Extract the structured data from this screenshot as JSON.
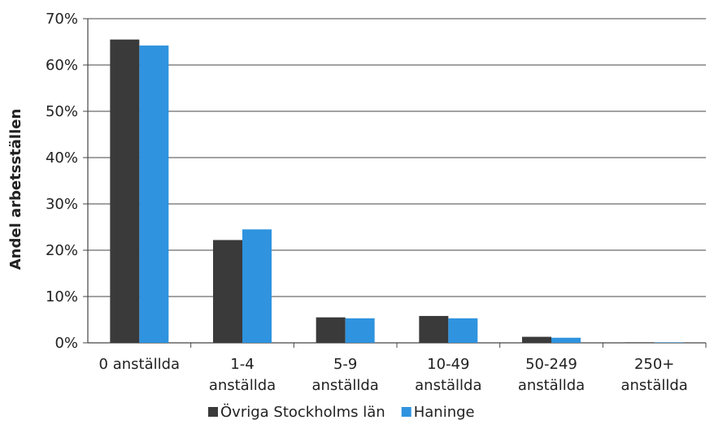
{
  "chart_data": {
    "type": "bar",
    "ylabel": "Andel arbetsställen",
    "xlabel": "",
    "ylim": [
      0,
      70
    ],
    "yticks": [
      "0%",
      "10%",
      "20%",
      "30%",
      "40%",
      "50%",
      "60%",
      "70%"
    ],
    "grid": true,
    "legend_position": "bottom",
    "categories": [
      [
        "0 anställda"
      ],
      [
        "1-4",
        "anställda"
      ],
      [
        "5-9",
        "anställda"
      ],
      [
        "10-49",
        "anställda"
      ],
      [
        "50-249",
        "anställda"
      ],
      [
        "250+",
        "anställda"
      ]
    ],
    "series": [
      {
        "name": "Övriga Stockholms län",
        "color": "#3a3a3a",
        "values": [
          65.5,
          22.2,
          5.5,
          5.8,
          1.3,
          0.1
        ]
      },
      {
        "name": "Haninge",
        "color": "#2f93df",
        "values": [
          64.2,
          24.5,
          5.3,
          5.3,
          1.1,
          0.1
        ]
      }
    ]
  }
}
